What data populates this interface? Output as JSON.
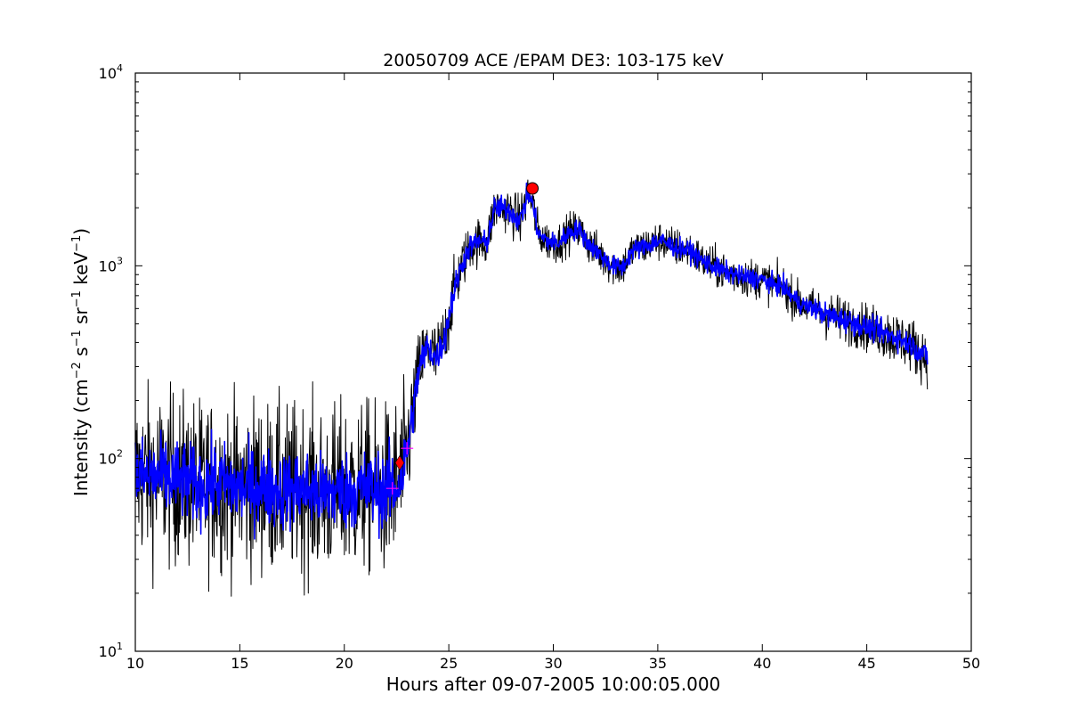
{
  "chart_data": {
    "type": "line",
    "title": "20050709 ACE /EPAM DE3: 103-175 keV",
    "xlabel": "Hours after 09-07-2005 10:00:05.000",
    "ylabel": {
      "prefix": "Intensity (cm",
      "exp1": "−2",
      "mid1": " s",
      "exp2": "−1",
      "mid2": " sr",
      "exp3": "−1",
      "mid3": " keV",
      "exp4": "−1",
      "suffix": ")"
    },
    "xlim": [
      10,
      50
    ],
    "ylim": [
      10,
      10000
    ],
    "yscale": "log",
    "grid": false,
    "x_ticks": [
      {
        "value": 10,
        "label": "10"
      },
      {
        "value": 15,
        "label": "15"
      },
      {
        "value": 20,
        "label": "20"
      },
      {
        "value": 25,
        "label": "25"
      },
      {
        "value": 30,
        "label": "30"
      },
      {
        "value": 35,
        "label": "35"
      },
      {
        "value": 40,
        "label": "40"
      },
      {
        "value": 45,
        "label": "45"
      },
      {
        "value": 50,
        "label": "50"
      }
    ],
    "y_ticks": [
      {
        "value": 10,
        "base": "10",
        "exp": "1"
      },
      {
        "value": 100,
        "base": "10",
        "exp": "2"
      },
      {
        "value": 1000,
        "base": "10",
        "exp": "3"
      },
      {
        "value": 10000,
        "base": "10",
        "exp": "4"
      }
    ],
    "series": [
      {
        "style": "raw-noisy",
        "color": "#000000",
        "x": [
          10.0,
          11.0,
          12.0,
          13.0,
          14.0,
          15.0,
          16.0,
          17.0,
          18.0,
          19.0,
          20.0,
          21.0,
          22.0,
          22.5,
          22.8,
          23.0,
          23.3,
          23.6,
          24.0,
          24.4,
          24.8,
          25.2,
          25.6,
          26.0,
          26.5,
          26.8,
          27.2,
          27.6,
          28.0,
          28.4,
          28.8,
          29.0,
          29.3,
          29.7,
          30.2,
          30.8,
          31.2,
          31.7,
          32.2,
          32.8,
          33.3,
          33.8,
          34.3,
          34.8,
          35.2,
          35.8,
          36.5,
          37.2,
          38.0,
          39.0,
          40.0,
          40.5,
          41.0,
          41.5,
          42.0,
          42.5,
          43.0,
          43.5,
          44.0,
          44.5,
          45.0,
          45.5,
          46.0,
          46.5,
          47.0,
          47.5,
          47.9
        ],
        "y": [
          82,
          80,
          78,
          72,
          75,
          70,
          72,
          68,
          70,
          66,
          68,
          70,
          68,
          72,
          85,
          110,
          180,
          300,
          380,
          330,
          420,
          700,
          1000,
          1250,
          1350,
          1300,
          2000,
          2000,
          1900,
          1700,
          2400,
          2100,
          1450,
          1350,
          1300,
          1500,
          1550,
          1300,
          1150,
          1000,
          980,
          1200,
          1250,
          1320,
          1350,
          1250,
          1200,
          1050,
          950,
          880,
          850,
          800,
          780,
          680,
          620,
          600,
          560,
          540,
          520,
          500,
          480,
          460,
          440,
          420,
          400,
          360,
          340
        ],
        "noise": [
          0.22,
          0.22,
          0.22,
          0.22,
          0.22,
          0.22,
          0.22,
          0.22,
          0.22,
          0.22,
          0.22,
          0.22,
          0.22,
          0.22,
          0.2,
          0.18,
          0.12,
          0.1,
          0.09,
          0.09,
          0.09,
          0.08,
          0.07,
          0.06,
          0.06,
          0.06,
          0.06,
          0.06,
          0.06,
          0.06,
          0.06,
          0.06,
          0.05,
          0.05,
          0.05,
          0.05,
          0.05,
          0.05,
          0.05,
          0.05,
          0.05,
          0.05,
          0.05,
          0.05,
          0.05,
          0.05,
          0.05,
          0.05,
          0.05,
          0.05,
          0.05,
          0.05,
          0.05,
          0.05,
          0.05,
          0.05,
          0.06,
          0.06,
          0.06,
          0.06,
          0.06,
          0.06,
          0.07,
          0.07,
          0.07,
          0.07,
          0.07
        ]
      },
      {
        "style": "smoothed",
        "color": "#0000ff",
        "x": [
          10.0,
          11.0,
          12.0,
          13.0,
          14.0,
          15.0,
          16.0,
          17.0,
          18.0,
          19.0,
          20.0,
          21.0,
          22.0,
          22.5,
          22.8,
          23.0,
          23.3,
          23.6,
          24.0,
          24.4,
          24.8,
          25.2,
          25.6,
          26.0,
          26.5,
          26.8,
          27.2,
          27.6,
          28.0,
          28.4,
          28.8,
          29.0,
          29.3,
          29.7,
          30.2,
          30.8,
          31.2,
          31.7,
          32.2,
          32.8,
          33.3,
          33.8,
          34.3,
          34.8,
          35.2,
          35.8,
          36.5,
          37.2,
          38.0,
          39.0,
          40.0,
          40.5,
          41.0,
          41.5,
          42.0,
          42.5,
          43.0,
          43.5,
          44.0,
          44.5,
          45.0,
          45.5,
          46.0,
          46.5,
          47.0,
          47.5,
          47.9
        ],
        "y": [
          82,
          80,
          78,
          72,
          75,
          70,
          72,
          68,
          70,
          66,
          68,
          70,
          68,
          72,
          85,
          110,
          180,
          300,
          380,
          330,
          420,
          700,
          1000,
          1250,
          1350,
          1300,
          2000,
          2000,
          1900,
          1700,
          2400,
          2100,
          1450,
          1350,
          1300,
          1500,
          1550,
          1300,
          1150,
          1000,
          980,
          1200,
          1250,
          1320,
          1350,
          1250,
          1200,
          1050,
          950,
          880,
          850,
          800,
          780,
          680,
          620,
          600,
          560,
          540,
          520,
          500,
          480,
          460,
          440,
          420,
          400,
          360,
          340
        ],
        "noise": [
          0.1,
          0.1,
          0.1,
          0.1,
          0.1,
          0.1,
          0.1,
          0.1,
          0.1,
          0.1,
          0.1,
          0.1,
          0.1,
          0.1,
          0.09,
          0.08,
          0.06,
          0.05,
          0.04,
          0.04,
          0.04,
          0.04,
          0.03,
          0.03,
          0.03,
          0.03,
          0.03,
          0.03,
          0.03,
          0.03,
          0.03,
          0.03,
          0.025,
          0.025,
          0.025,
          0.025,
          0.025,
          0.025,
          0.025,
          0.025,
          0.025,
          0.025,
          0.025,
          0.025,
          0.025,
          0.025,
          0.025,
          0.025,
          0.025,
          0.025,
          0.025,
          0.025,
          0.025,
          0.025,
          0.025,
          0.025,
          0.03,
          0.03,
          0.03,
          0.03,
          0.03,
          0.03,
          0.03,
          0.03,
          0.03,
          0.03,
          0.03
        ]
      }
    ],
    "markers": [
      {
        "kind": "onset-plus",
        "x": 22.3,
        "y": 70,
        "color": "#ff00ff"
      },
      {
        "kind": "onset-diamond",
        "x": 22.65,
        "y": 95,
        "color": "#ff0000"
      },
      {
        "kind": "onset-plus",
        "x": 23.0,
        "y": 113,
        "color": "#ff00ff"
      },
      {
        "kind": "peak-circle",
        "x": 29.0,
        "y": 2520,
        "color": "#ff0000"
      }
    ]
  }
}
